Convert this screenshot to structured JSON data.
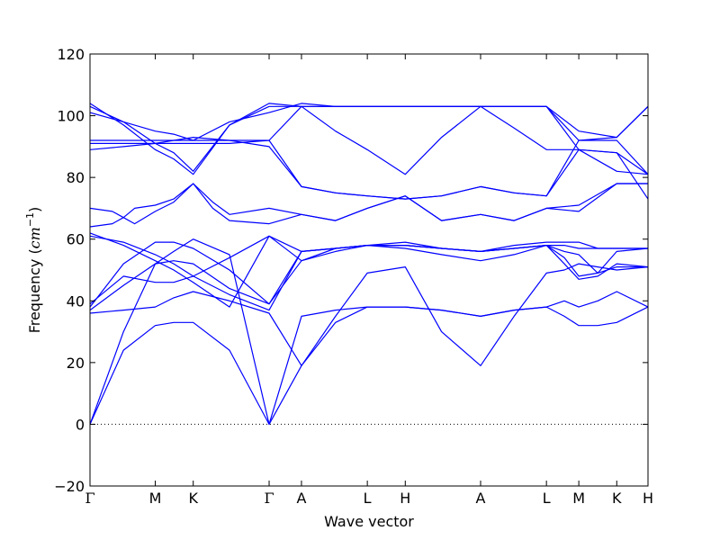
{
  "chart_data": {
    "type": "line",
    "title": "",
    "xlabel": "Wave vector",
    "ylabel_prefix": "Frequency (",
    "ylabel_unit_base": "cm",
    "ylabel_unit_exp": "−1",
    "ylabel_suffix": ")",
    "ylim": [
      -20,
      120
    ],
    "yticks": [
      -20,
      0,
      20,
      40,
      60,
      80,
      100,
      120
    ],
    "ytick_labels": [
      "−20",
      "0",
      "20",
      "40",
      "60",
      "80",
      "100",
      "120"
    ],
    "xlim": [
      0,
      1
    ],
    "high_symmetry_points": [
      {
        "label": "Γ",
        "x": 0.0
      },
      {
        "label": "M",
        "x": 0.117
      },
      {
        "label": "K",
        "x": 0.185
      },
      {
        "label": "Γ",
        "x": 0.321
      },
      {
        "label": "A",
        "x": 0.379
      },
      {
        "label": "L",
        "x": 0.497
      },
      {
        "label": "H",
        "x": 0.565
      },
      {
        "label": "A",
        "x": 0.7
      },
      {
        "label": "L",
        "x": 0.818
      },
      {
        "label": "M",
        "x": 0.876
      },
      {
        "label": "K",
        "x": 0.944
      },
      {
        "label": "H",
        "x": 1.0
      }
    ],
    "zero_line": {
      "y": 0,
      "style": "dotted"
    },
    "series_color": "#0000ff",
    "series": [
      {
        "x": [
          0,
          0.06,
          0.117,
          0.15,
          0.185,
          0.25,
          0.321,
          0.379,
          0.44,
          0.497,
          0.565,
          0.63,
          0.7,
          0.76,
          0.818,
          0.85,
          0.876,
          0.91,
          0.944,
          1.0
        ],
        "values": [
          0,
          30,
          52,
          56,
          60,
          55,
          0,
          19,
          33,
          38,
          38,
          37,
          35,
          37,
          38,
          40,
          38,
          40,
          43,
          38
        ]
      },
      {
        "x": [
          0,
          0.06,
          0.117,
          0.15,
          0.185,
          0.25,
          0.321,
          0.379,
          0.44,
          0.497,
          0.565,
          0.63,
          0.7,
          0.76,
          0.818,
          0.85,
          0.876,
          0.91,
          0.944,
          1.0
        ],
        "values": [
          0,
          24,
          32,
          33,
          33,
          24,
          0,
          35,
          37,
          38,
          38,
          37,
          35,
          37,
          38,
          35,
          32,
          32,
          33,
          38
        ]
      },
      {
        "x": [
          0,
          0.06,
          0.117,
          0.15,
          0.185,
          0.25,
          0.321,
          0.379,
          0.44,
          0.497,
          0.565,
          0.63,
          0.7,
          0.76,
          0.818,
          0.85,
          0.876,
          0.91,
          0.944,
          1.0
        ],
        "values": [
          36,
          37,
          38,
          41,
          43,
          40,
          36,
          19,
          35,
          49,
          51,
          30,
          19,
          35,
          49,
          50,
          52,
          51,
          50,
          51
        ]
      },
      {
        "x": [
          0,
          0.06,
          0.117,
          0.15,
          0.185,
          0.25,
          0.321,
          0.379,
          0.44,
          0.497,
          0.565,
          0.63,
          0.7,
          0.76,
          0.818,
          0.85,
          0.876,
          0.91,
          0.944,
          1.0
        ],
        "values": [
          37,
          45,
          52,
          53,
          52,
          44,
          39,
          53,
          56,
          58,
          58,
          57,
          56,
          57,
          58,
          56,
          55,
          49,
          56,
          57
        ]
      },
      {
        "x": [
          0,
          0.06,
          0.117,
          0.15,
          0.185,
          0.25,
          0.321,
          0.379,
          0.44,
          0.497,
          0.565,
          0.63,
          0.7,
          0.76,
          0.818,
          0.85,
          0.876,
          0.91,
          0.944,
          1.0
        ],
        "values": [
          38,
          52,
          59,
          59,
          57,
          50,
          39,
          56,
          57,
          58,
          59,
          57,
          56,
          58,
          59,
          59,
          59,
          57,
          57,
          57
        ]
      },
      {
        "x": [
          0,
          0.06,
          0.117,
          0.15,
          0.185,
          0.25,
          0.321,
          0.379,
          0.44,
          0.497,
          0.565,
          0.63,
          0.7,
          0.76,
          0.818,
          0.85,
          0.876,
          0.91,
          0.944,
          1.0
        ],
        "values": [
          39,
          48,
          46,
          46,
          48,
          54,
          61,
          53,
          57,
          58,
          57,
          55,
          53,
          55,
          58,
          54,
          48,
          49,
          51,
          51
        ]
      },
      {
        "x": [
          0,
          0.06,
          0.117,
          0.15,
          0.185,
          0.25,
          0.321,
          0.379,
          0.44,
          0.497,
          0.565,
          0.63,
          0.7,
          0.76,
          0.818,
          0.85,
          0.876,
          0.91,
          0.944,
          1.0
        ],
        "values": [
          61,
          59,
          55,
          52,
          48,
          42,
          37,
          56,
          57,
          58,
          58,
          57,
          56,
          57,
          58,
          52,
          47,
          48,
          52,
          51
        ]
      },
      {
        "x": [
          0,
          0.06,
          0.117,
          0.15,
          0.185,
          0.25,
          0.321,
          0.379,
          0.44,
          0.497,
          0.565,
          0.63,
          0.7,
          0.76,
          0.818,
          0.85,
          0.876,
          0.91,
          0.944,
          1.0
        ],
        "values": [
          62,
          58,
          53,
          50,
          46,
          38,
          61,
          56,
          57,
          58,
          58,
          57,
          56,
          57,
          58,
          58,
          57,
          57,
          57,
          57
        ]
      },
      {
        "x": [
          0,
          0.04,
          0.06,
          0.08,
          0.117,
          0.15,
          0.185,
          0.22,
          0.25,
          0.321,
          0.379,
          0.44,
          0.497,
          0.565,
          0.63,
          0.7,
          0.76,
          0.818,
          0.876,
          0.944,
          1.0
        ],
        "values": [
          64,
          65,
          67,
          65,
          69,
          72,
          78,
          70,
          66,
          65,
          68,
          66,
          70,
          74,
          66,
          68,
          66,
          70,
          71,
          78,
          78
        ]
      },
      {
        "x": [
          0,
          0.04,
          0.06,
          0.08,
          0.117,
          0.15,
          0.185,
          0.22,
          0.25,
          0.321,
          0.379,
          0.44,
          0.497,
          0.565,
          0.63,
          0.7,
          0.76,
          0.818,
          0.876,
          0.944,
          1.0
        ],
        "values": [
          70,
          69,
          67,
          70,
          71,
          73,
          78,
          72,
          68,
          70,
          68,
          66,
          70,
          74,
          66,
          68,
          66,
          70,
          69,
          78,
          78
        ]
      },
      {
        "x": [
          0,
          0.06,
          0.117,
          0.15,
          0.185,
          0.25,
          0.321,
          0.379,
          0.44,
          0.497,
          0.565,
          0.63,
          0.7,
          0.76,
          0.818,
          0.876,
          0.944,
          1.0
        ],
        "values": [
          89,
          90,
          91,
          92,
          93,
          92,
          90,
          77,
          75,
          74,
          73,
          74,
          77,
          75,
          74,
          89,
          88,
          81
        ]
      },
      {
        "x": [
          0,
          0.06,
          0.117,
          0.15,
          0.185,
          0.25,
          0.321,
          0.379,
          0.44,
          0.497,
          0.565,
          0.63,
          0.7,
          0.76,
          0.818,
          0.876,
          0.944,
          1.0
        ],
        "values": [
          92,
          92,
          92,
          92,
          92,
          92,
          92,
          77,
          75,
          74,
          73,
          74,
          77,
          75,
          74,
          92,
          92,
          81
        ]
      },
      {
        "x": [
          0,
          0.06,
          0.117,
          0.15,
          0.185,
          0.25,
          0.321,
          0.379,
          0.44,
          0.497,
          0.565,
          0.63,
          0.7,
          0.76,
          0.818,
          0.876,
          0.944,
          1.0
        ],
        "values": [
          104,
          97,
          89,
          86,
          81,
          97,
          104,
          103,
          95,
          89,
          81,
          93,
          103,
          96,
          89,
          89,
          82,
          81
        ]
      },
      {
        "x": [
          0,
          0.06,
          0.117,
          0.15,
          0.185,
          0.25,
          0.321,
          0.379,
          0.44,
          0.497,
          0.565,
          0.63,
          0.7,
          0.76,
          0.818,
          0.876,
          0.944,
          1.0
        ],
        "values": [
          103,
          98,
          91,
          88,
          82,
          97,
          103,
          103,
          103,
          103,
          103,
          103,
          103,
          103,
          103,
          92,
          93,
          103
        ]
      },
      {
        "x": [
          0,
          0.06,
          0.117,
          0.15,
          0.185,
          0.25,
          0.321,
          0.379,
          0.44,
          0.497,
          0.565,
          0.63,
          0.7,
          0.76,
          0.818,
          0.876,
          0.944,
          1.0
        ],
        "values": [
          101,
          98,
          95,
          94,
          92,
          98,
          101,
          104,
          103,
          103,
          103,
          103,
          103,
          103,
          103,
          95,
          93,
          103
        ]
      },
      {
        "x": [
          0,
          0.06,
          0.117,
          0.15,
          0.185,
          0.25,
          0.321,
          0.379,
          0.44,
          0.497,
          0.565,
          0.63,
          0.7,
          0.76,
          0.818,
          0.876,
          0.944,
          1.0
        ],
        "values": [
          91,
          91,
          91,
          91,
          91,
          91,
          92,
          103,
          103,
          103,
          103,
          103,
          103,
          103,
          103,
          89,
          88,
          73
        ]
      }
    ]
  }
}
